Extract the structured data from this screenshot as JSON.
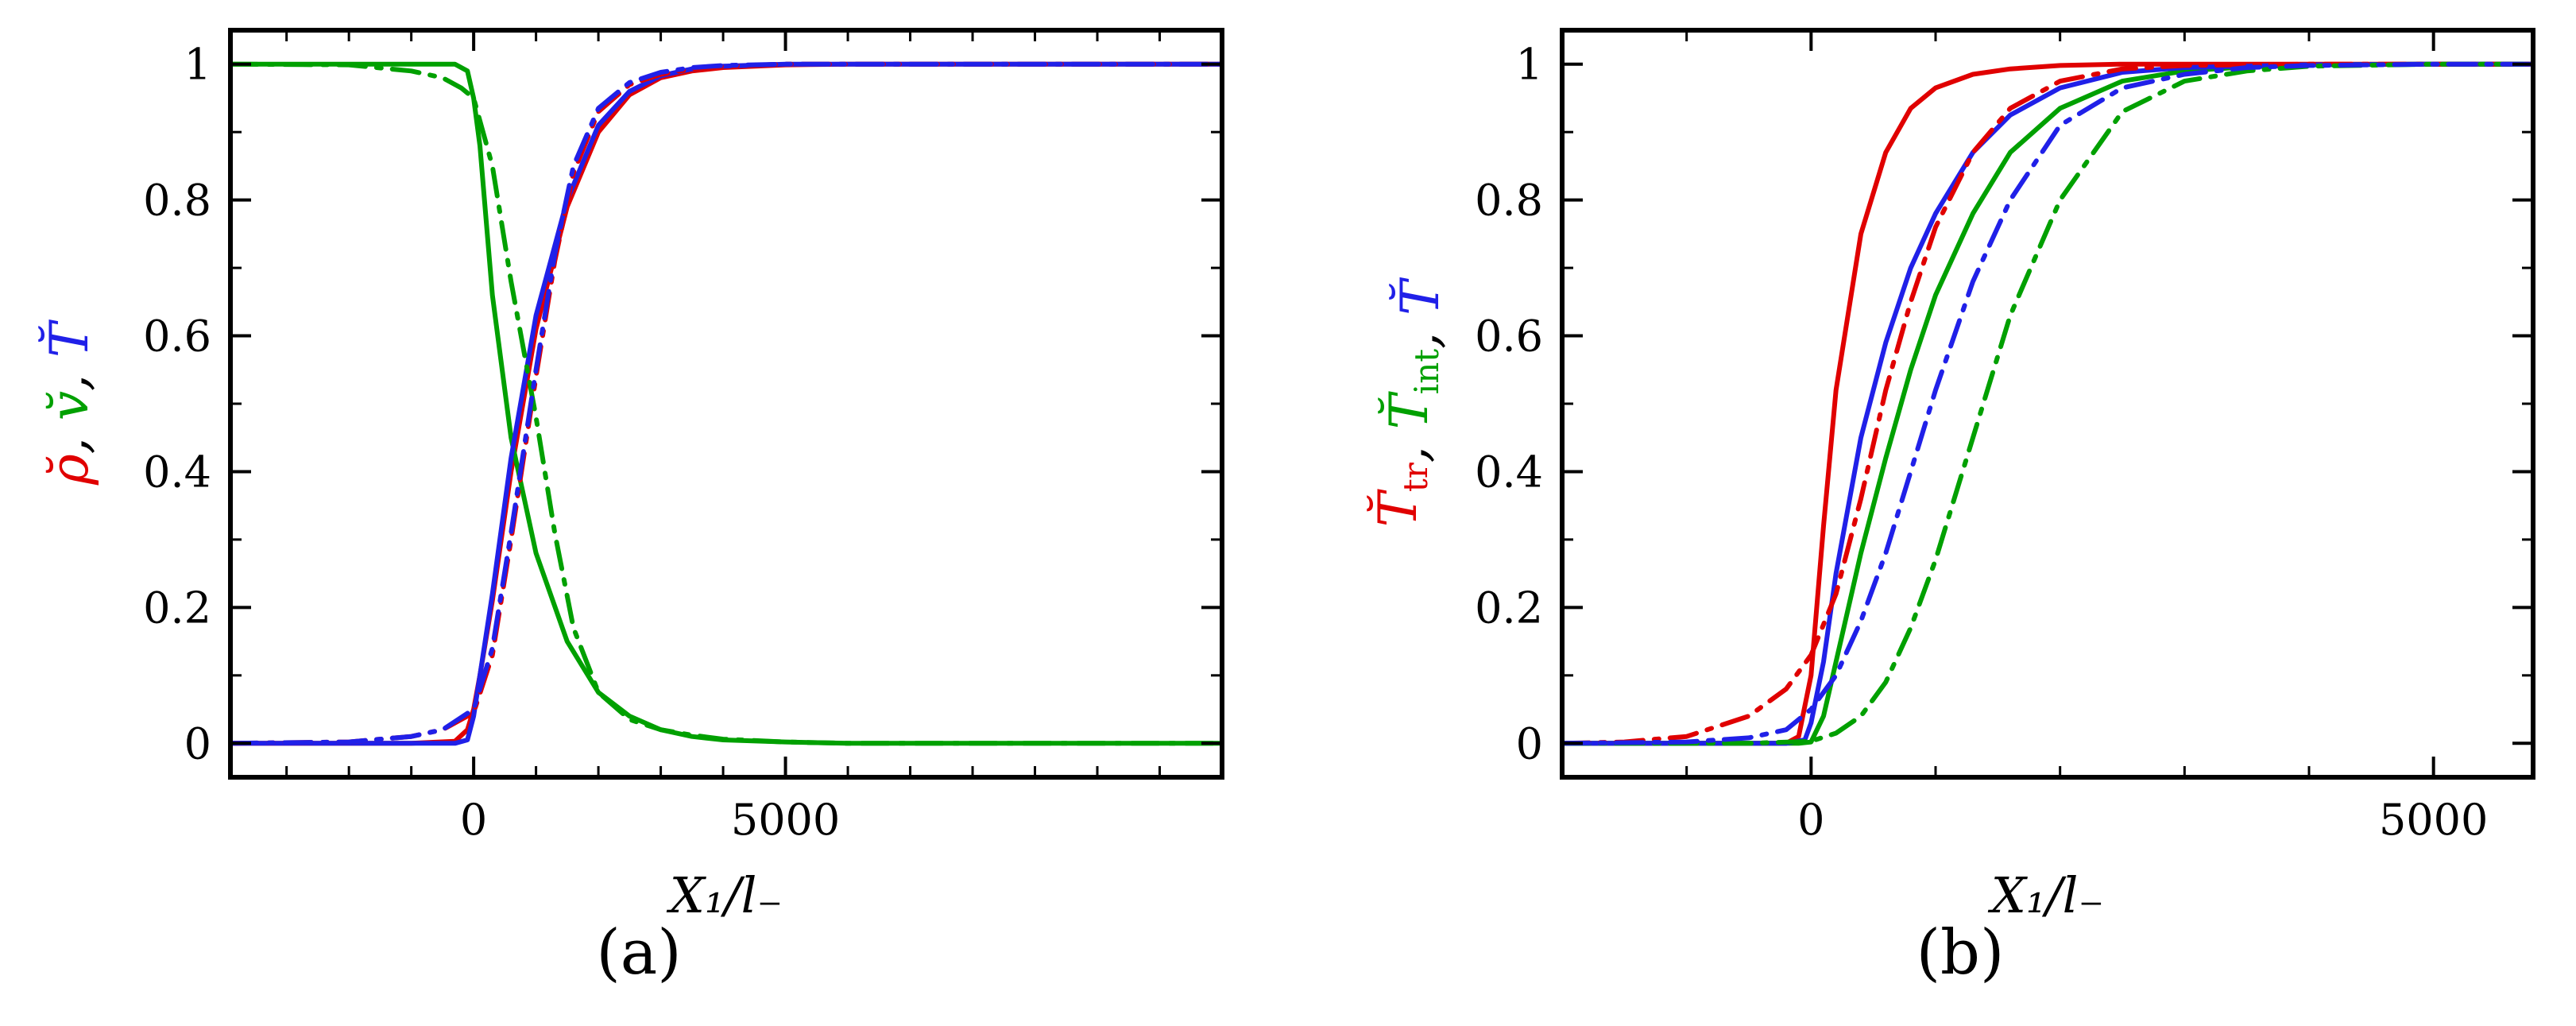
{
  "figure": {
    "colors": {
      "red": "#e00000",
      "green": "#00a000",
      "blue": "#2020e8",
      "axis": "#000000"
    }
  },
  "chart_data": [
    {
      "type": "line",
      "panel_label": "(a)",
      "xlabel": "X₁/l₋",
      "ylabel_parts": [
        {
          "text": "ρ̆",
          "color": "#e00000"
        },
        {
          "text": ", ",
          "color": "#000000"
        },
        {
          "text": "v̆",
          "color": "#00a000"
        },
        {
          "text": ", ",
          "color": "#000000"
        },
        {
          "text": "T̆",
          "color": "#2020e8"
        }
      ],
      "xlim": [
        -3900,
        12000
      ],
      "ylim": [
        -0.05,
        1.05
      ],
      "xticks": [
        {
          "value": 0,
          "label": "0"
        },
        {
          "value": 5000,
          "label": "5000"
        }
      ],
      "yticks": [
        {
          "value": 0,
          "label": "0"
        },
        {
          "value": 0.2,
          "label": "0.2"
        },
        {
          "value": 0.4,
          "label": "0.4"
        },
        {
          "value": 0.6,
          "label": "0.6"
        },
        {
          "value": 0.8,
          "label": "0.8"
        },
        {
          "value": 1,
          "label": "1"
        }
      ],
      "series": [
        {
          "name": "rho solid",
          "color": "#e00000",
          "dash": "solid",
          "x": [
            -3900,
            -1500,
            -1000,
            -300,
            -100,
            0,
            100,
            300,
            600,
            1000,
            1500,
            2000,
            2500,
            3000,
            3500,
            4000,
            5000,
            6000,
            8000,
            12000
          ],
          "y": [
            0,
            0,
            0,
            0.003,
            0.02,
            0.05,
            0.1,
            0.21,
            0.4,
            0.61,
            0.79,
            0.9,
            0.955,
            0.98,
            0.99,
            0.995,
            0.999,
            1,
            1,
            1
          ]
        },
        {
          "name": "v solid",
          "color": "#00a000",
          "dash": "solid",
          "x": [
            -3900,
            -1500,
            -600,
            -300,
            -100,
            0,
            100,
            300,
            600,
            1000,
            1500,
            2000,
            2500,
            3000,
            3500,
            4000,
            5000,
            6000,
            8000,
            12000
          ],
          "y": [
            1,
            1,
            1,
            1,
            0.99,
            0.95,
            0.88,
            0.66,
            0.45,
            0.28,
            0.15,
            0.075,
            0.04,
            0.02,
            0.01,
            0.005,
            0.002,
            0,
            0,
            0
          ]
        },
        {
          "name": "T solid",
          "color": "#2020e8",
          "dash": "solid",
          "x": [
            -3900,
            -1500,
            -1000,
            -300,
            -100,
            0,
            100,
            300,
            600,
            1000,
            1500,
            2000,
            2500,
            3000,
            3500,
            4000,
            5000,
            6000,
            8000,
            12000
          ],
          "y": [
            0,
            0,
            0,
            0,
            0.005,
            0.04,
            0.1,
            0.22,
            0.42,
            0.63,
            0.8,
            0.91,
            0.96,
            0.983,
            0.993,
            0.997,
            1,
            1,
            1,
            1
          ]
        },
        {
          "name": "rho dashdot",
          "color": "#e00000",
          "dash": "dashdot",
          "x": [
            -3900,
            -2000,
            -1000,
            -500,
            0,
            300,
            600,
            1000,
            1300,
            1600,
            2000,
            2500,
            3000,
            3500,
            4000,
            5000,
            6000,
            8000,
            12000
          ],
          "y": [
            0,
            0.002,
            0.01,
            0.02,
            0.045,
            0.13,
            0.3,
            0.54,
            0.71,
            0.84,
            0.93,
            0.97,
            0.985,
            0.993,
            0.997,
            1,
            1,
            1,
            1
          ]
        },
        {
          "name": "v dashdot",
          "color": "#00a000",
          "dash": "dashdot",
          "x": [
            -3900,
            -2000,
            -1000,
            -500,
            -200,
            0,
            300,
            600,
            1000,
            1300,
            1600,
            2000,
            2500,
            3000,
            3500,
            4000,
            5000,
            6000,
            8000,
            12000
          ],
          "y": [
            1,
            0.999,
            0.99,
            0.98,
            0.965,
            0.95,
            0.85,
            0.68,
            0.48,
            0.31,
            0.17,
            0.075,
            0.035,
            0.02,
            0.012,
            0.006,
            0.002,
            0,
            0,
            0
          ]
        },
        {
          "name": "T dashdot",
          "color": "#2020e8",
          "dash": "dashdot",
          "x": [
            -3900,
            -2000,
            -1000,
            -500,
            0,
            300,
            600,
            1000,
            1300,
            1600,
            2000,
            2500,
            3000,
            3500,
            4000,
            5000,
            6000,
            8000,
            12000
          ],
          "y": [
            0,
            0.002,
            0.01,
            0.02,
            0.05,
            0.14,
            0.31,
            0.55,
            0.72,
            0.85,
            0.935,
            0.973,
            0.988,
            0.995,
            0.998,
            1,
            1,
            1,
            1
          ]
        }
      ]
    },
    {
      "type": "line",
      "panel_label": "(b)",
      "xlabel": "X₁/l₋",
      "ylabel_parts": [
        {
          "text": "T̆",
          "color": "#e00000",
          "sub": "tr"
        },
        {
          "text": ", ",
          "color": "#000000"
        },
        {
          "text": "T̆",
          "color": "#00a000",
          "sub": "int"
        },
        {
          "text": ", ",
          "color": "#000000"
        },
        {
          "text": "T̆",
          "color": "#2020e8"
        }
      ],
      "xlim": [
        -2000,
        5800
      ],
      "ylim": [
        -0.05,
        1.05
      ],
      "xticks": [
        {
          "value": 0,
          "label": "0"
        },
        {
          "value": 5000,
          "label": "5000"
        }
      ],
      "yticks": [
        {
          "value": 0,
          "label": "0"
        },
        {
          "value": 0.2,
          "label": "0.2"
        },
        {
          "value": 0.4,
          "label": "0.4"
        },
        {
          "value": 0.6,
          "label": "0.6"
        },
        {
          "value": 0.8,
          "label": "0.8"
        },
        {
          "value": 1,
          "label": "1"
        }
      ],
      "series": [
        {
          "name": "T_tr solid",
          "color": "#e00000",
          "dash": "solid",
          "x": [
            -2000,
            -500,
            -200,
            -100,
            0,
            100,
            200,
            400,
            600,
            800,
            1000,
            1300,
            1600,
            2000,
            2500,
            3000,
            4000,
            5800
          ],
          "y": [
            0,
            0,
            0,
            0.01,
            0.1,
            0.32,
            0.52,
            0.75,
            0.87,
            0.935,
            0.965,
            0.985,
            0.993,
            0.998,
            1,
            1,
            1,
            1
          ]
        },
        {
          "name": "T_int solid",
          "color": "#00a000",
          "dash": "solid",
          "x": [
            -2000,
            -500,
            -100,
            0,
            100,
            200,
            400,
            600,
            800,
            1000,
            1300,
            1600,
            2000,
            2500,
            3000,
            3500,
            4000,
            5000,
            5800
          ],
          "y": [
            0,
            0,
            0,
            0.002,
            0.04,
            0.12,
            0.28,
            0.42,
            0.55,
            0.66,
            0.78,
            0.87,
            0.935,
            0.975,
            0.99,
            0.996,
            0.999,
            1,
            1
          ]
        },
        {
          "name": "T solid",
          "color": "#2020e8",
          "dash": "solid",
          "x": [
            -2000,
            -500,
            -200,
            -50,
            0,
            100,
            200,
            400,
            600,
            800,
            1000,
            1300,
            1600,
            2000,
            2500,
            3000,
            4000,
            5000,
            5800
          ],
          "y": [
            0,
            0,
            0,
            0.005,
            0.03,
            0.12,
            0.25,
            0.45,
            0.59,
            0.7,
            0.78,
            0.87,
            0.925,
            0.965,
            0.988,
            0.995,
            0.999,
            1,
            1
          ]
        },
        {
          "name": "T_tr dashdot",
          "color": "#e00000",
          "dash": "dashdot",
          "x": [
            -2000,
            -1500,
            -1000,
            -500,
            -200,
            0,
            200,
            400,
            600,
            800,
            1000,
            1300,
            1600,
            2000,
            2500,
            3000,
            4000,
            5800
          ],
          "y": [
            0,
            0.002,
            0.01,
            0.04,
            0.08,
            0.13,
            0.22,
            0.36,
            0.52,
            0.65,
            0.76,
            0.87,
            0.935,
            0.975,
            0.993,
            0.998,
            1,
            1
          ]
        },
        {
          "name": "T_int dashdot",
          "color": "#00a000",
          "dash": "dashdot",
          "x": [
            -2000,
            -1000,
            -500,
            0,
            200,
            400,
            600,
            800,
            1000,
            1300,
            1600,
            2000,
            2500,
            3000,
            3500,
            4000,
            5000,
            5800
          ],
          "y": [
            0,
            0,
            0,
            0.003,
            0.015,
            0.04,
            0.09,
            0.17,
            0.27,
            0.45,
            0.63,
            0.8,
            0.93,
            0.975,
            0.99,
            0.997,
            1,
            1
          ]
        },
        {
          "name": "T dashdot",
          "color": "#2020e8",
          "dash": "dashdot",
          "x": [
            -2000,
            -1000,
            -500,
            -200,
            0,
            200,
            400,
            600,
            800,
            1000,
            1300,
            1600,
            2000,
            2500,
            3000,
            3500,
            4000,
            5000,
            5800
          ],
          "y": [
            0,
            0.002,
            0.008,
            0.02,
            0.05,
            0.1,
            0.18,
            0.28,
            0.4,
            0.52,
            0.68,
            0.8,
            0.91,
            0.965,
            0.985,
            0.995,
            0.998,
            1,
            1
          ]
        }
      ]
    }
  ]
}
